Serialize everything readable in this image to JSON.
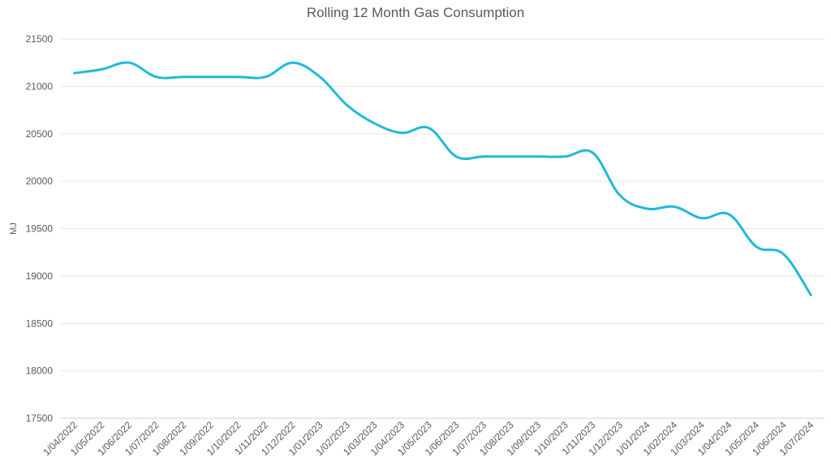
{
  "chart_data": {
    "type": "line",
    "title": "Rolling 12 Month Gas Consumption",
    "xlabel": "",
    "ylabel": "MJ",
    "ylim": [
      17500,
      21500
    ],
    "yticks": [
      17500,
      18000,
      18500,
      19000,
      19500,
      20000,
      20500,
      21000,
      21500
    ],
    "grid": true,
    "legend": "none",
    "line_color": "#1FBAD6",
    "categories": [
      "1/04/2022",
      "1/05/2022",
      "1/06/2022",
      "1/07/2022",
      "1/08/2022",
      "1/09/2022",
      "1/10/2022",
      "1/11/2022",
      "1/12/2022",
      "1/01/2023",
      "1/02/2023",
      "1/03/2023",
      "1/04/2023",
      "1/05/2023",
      "1/06/2023",
      "1/07/2023",
      "1/08/2023",
      "1/09/2023",
      "1/10/2023",
      "1/11/2023",
      "1/12/2023",
      "1/01/2024",
      "1/02/2024",
      "1/03/2024",
      "1/04/2024",
      "1/05/2024",
      "1/06/2024",
      "1/07/2024"
    ],
    "series": [
      {
        "values": [
          21140,
          21180,
          21250,
          21100,
          21100,
          21100,
          21100,
          21100,
          21250,
          21100,
          20800,
          20610,
          20510,
          20560,
          20260,
          20260,
          20260,
          20260,
          20260,
          20300,
          19850,
          19710,
          19730,
          19610,
          19650,
          19310,
          19230,
          18800
        ]
      }
    ]
  }
}
